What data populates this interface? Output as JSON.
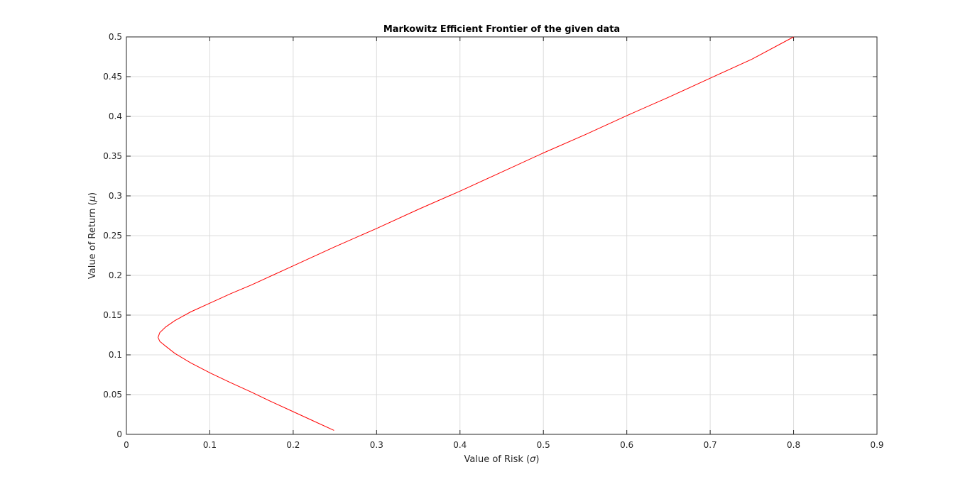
{
  "chart_data": {
    "type": "line",
    "title": "Markowitz Efficient Frontier of the given data",
    "xlabel_text": "Value of Risk (",
    "xlabel_symbol": "σ",
    "xlabel_close": ")",
    "ylabel_text": "Value of Return (",
    "ylabel_symbol": "μ",
    "ylabel_close": ")",
    "xlim": [
      0,
      0.9
    ],
    "ylim": [
      0,
      0.5
    ],
    "xticks": [
      0,
      0.1,
      0.2,
      0.3,
      0.4,
      0.5,
      0.6,
      0.7,
      0.8,
      0.9
    ],
    "yticks": [
      0,
      0.05,
      0.1,
      0.15,
      0.2,
      0.25,
      0.3,
      0.35,
      0.4,
      0.45,
      0.5
    ],
    "xtick_labels": [
      "0",
      "0.1",
      "0.2",
      "0.3",
      "0.4",
      "0.5",
      "0.6",
      "0.7",
      "0.8",
      "0.9"
    ],
    "ytick_labels": [
      "0",
      "0.05",
      "0.1",
      "0.15",
      "0.2",
      "0.25",
      "0.3",
      "0.35",
      "0.4",
      "0.45",
      "0.5"
    ],
    "grid": true,
    "series": [
      {
        "color": "#ff0000",
        "x": [
          0.249,
          0.224,
          0.199,
          0.174,
          0.15,
          0.125,
          0.101,
          0.077,
          0.058,
          0.047,
          0.04,
          0.038,
          0.04,
          0.047,
          0.058,
          0.077,
          0.1,
          0.125,
          0.15,
          0.175,
          0.2,
          0.25,
          0.3,
          0.35,
          0.4,
          0.45,
          0.5,
          0.55,
          0.6,
          0.65,
          0.7,
          0.75,
          0.8
        ],
        "y": [
          0.005,
          0.017,
          0.029,
          0.041,
          0.053,
          0.065,
          0.077,
          0.09,
          0.102,
          0.111,
          0.117,
          0.122,
          0.128,
          0.135,
          0.143,
          0.154,
          0.165,
          0.177,
          0.188,
          0.2,
          0.212,
          0.236,
          0.259,
          0.283,
          0.306,
          0.33,
          0.354,
          0.377,
          0.401,
          0.424,
          0.448,
          0.472,
          0.5
        ]
      }
    ]
  }
}
